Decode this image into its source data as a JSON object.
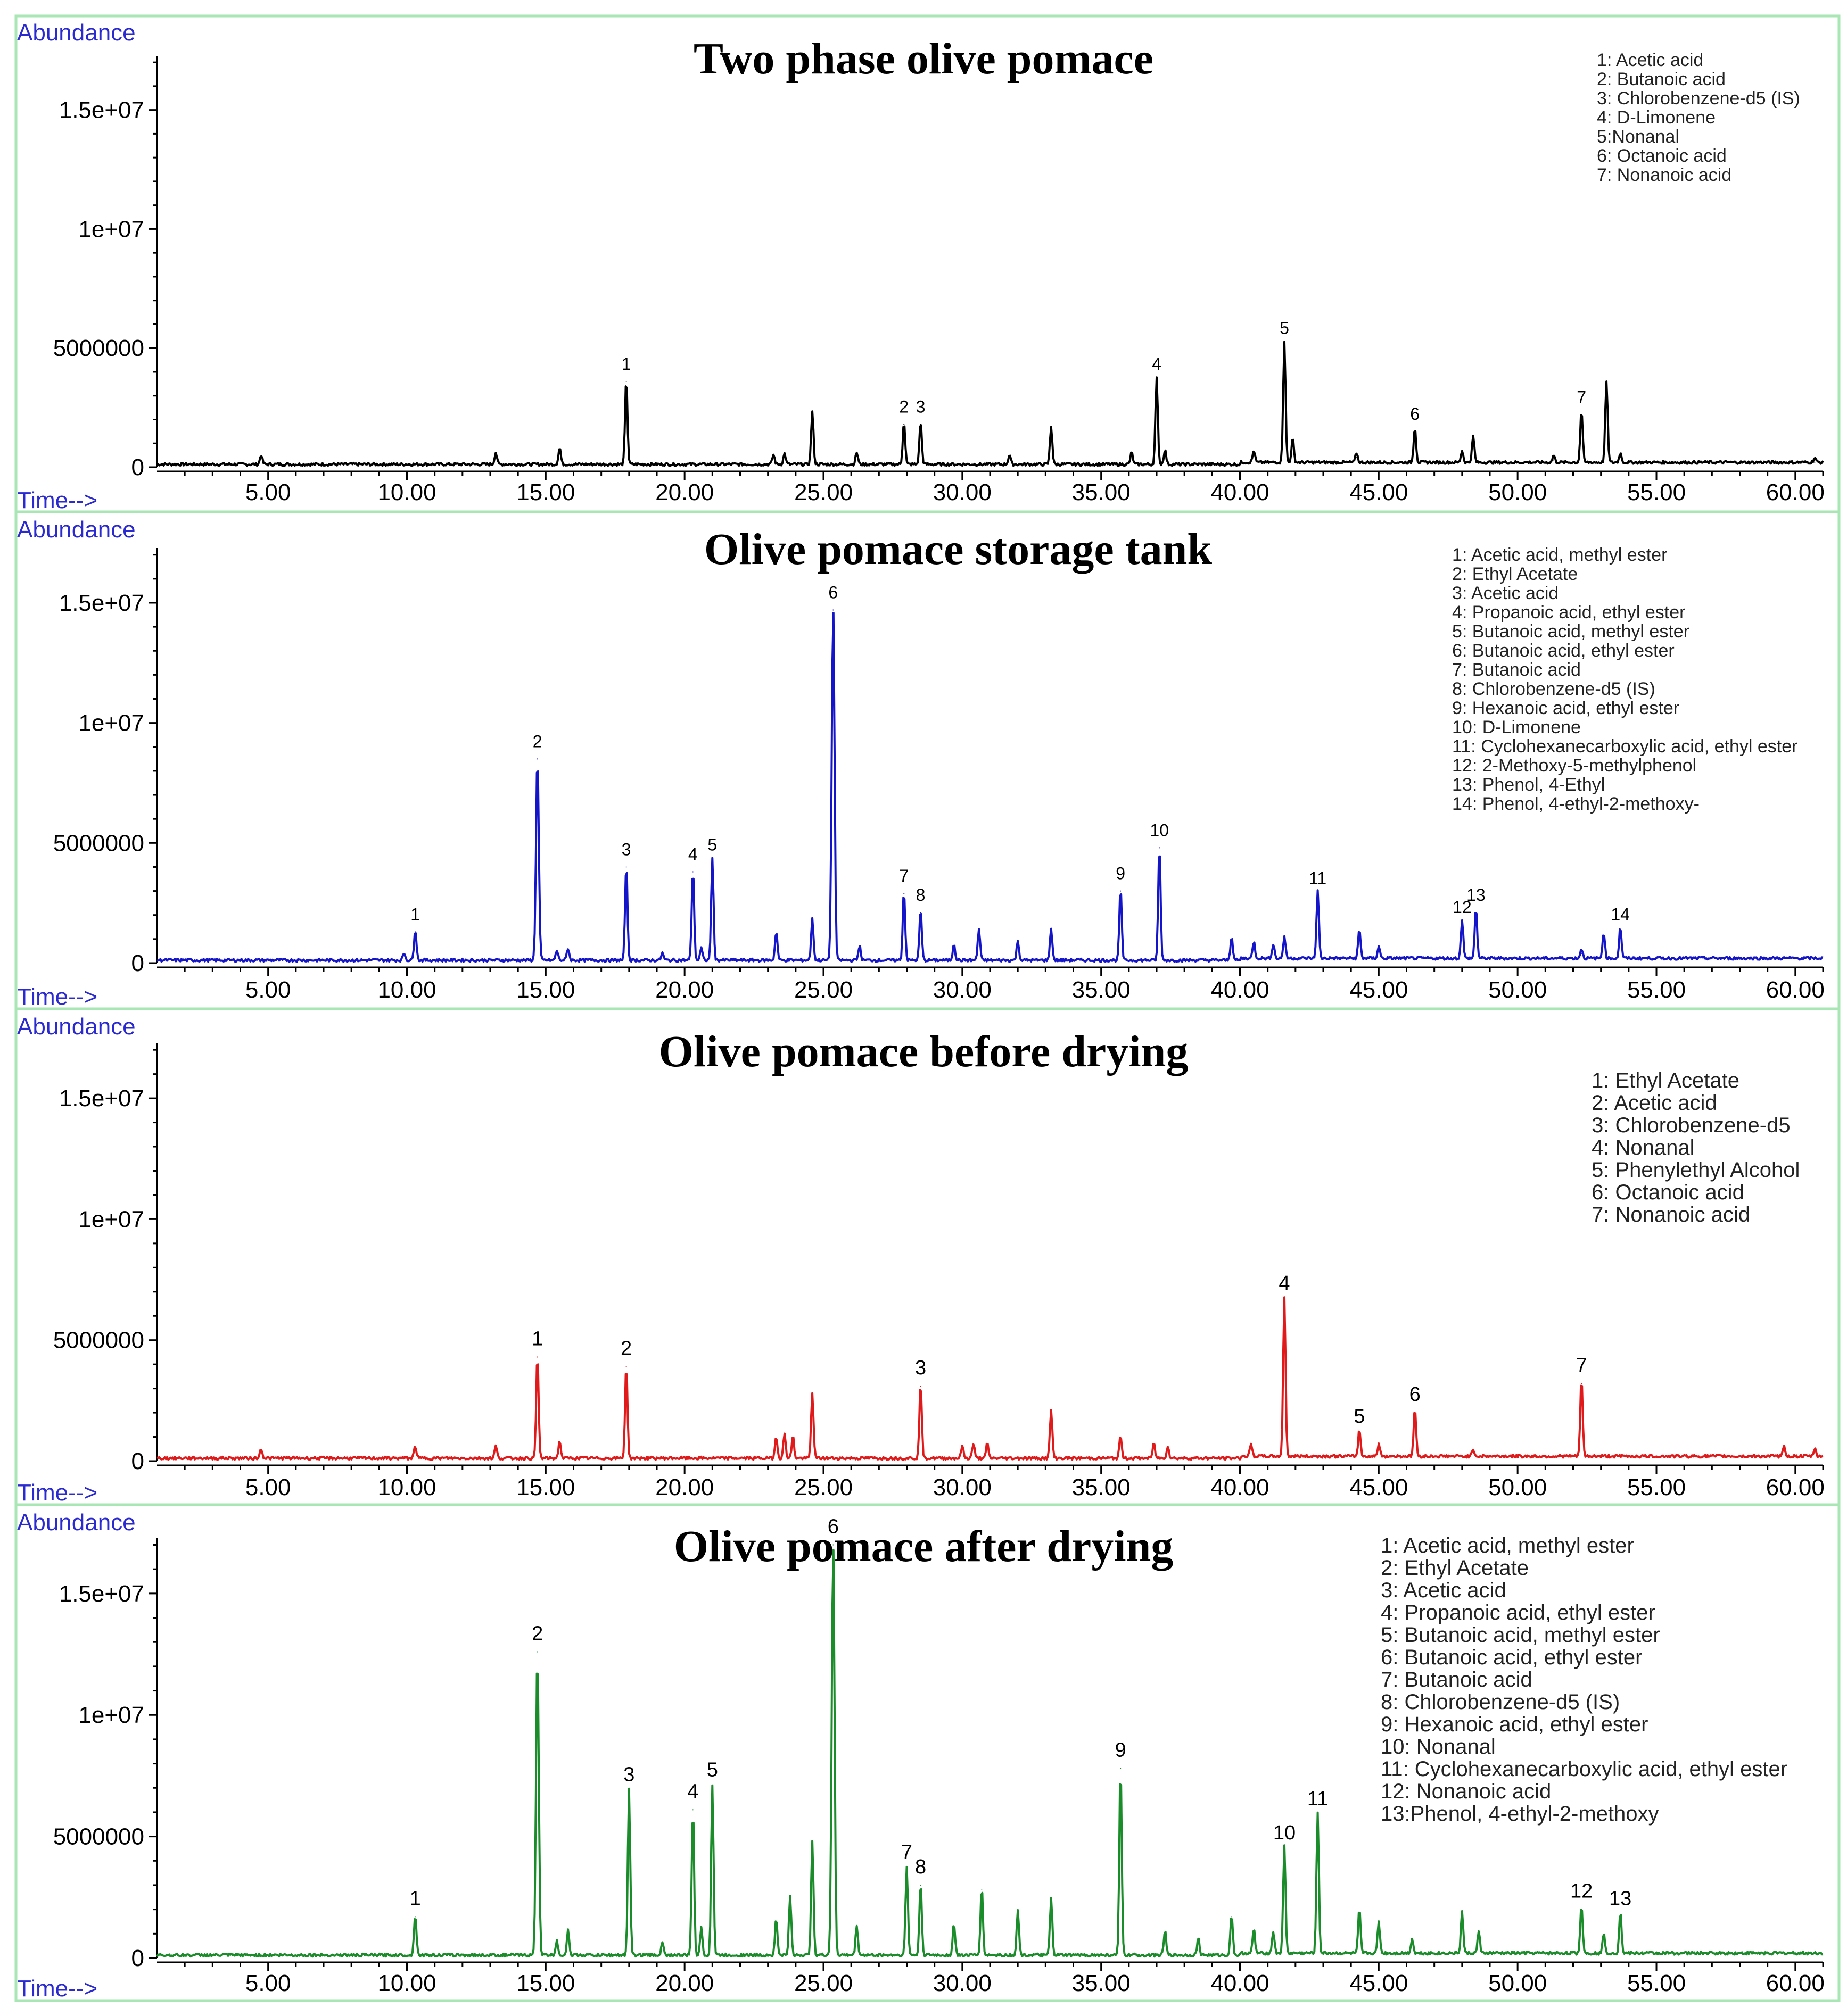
{
  "chart_data": [
    {
      "type": "line",
      "title": "Two phase olive pomace",
      "ylabel": "Abundance",
      "xlabel": "Time-->",
      "color": "#000000",
      "xlim": [
        1.0,
        61.0
      ],
      "ylim": [
        0,
        18500000
      ],
      "xticks": [
        "5.00",
        "10.00",
        "15.00",
        "20.00",
        "25.00",
        "30.00",
        "35.00",
        "40.00",
        "45.00",
        "50.00",
        "55.00",
        "60.00"
      ],
      "yticks": [
        "0",
        "5000000",
        "1e+07",
        "1.5e+07"
      ],
      "legend": [
        "1: Acetic acid",
        "2: Butanoic acid",
        "3: Chlorobenzene-d5 (IS)",
        "4: D-Limonene",
        "5:Nonanal",
        "6: Octanoic acid",
        "7: Nonanoic acid"
      ],
      "peaks": [
        {
          "x": 4.75,
          "y": 400000,
          "label": ""
        },
        {
          "x": 13.2,
          "y": 500000,
          "label": ""
        },
        {
          "x": 15.5,
          "y": 700000,
          "label": ""
        },
        {
          "x": 17.9,
          "y": 3600000,
          "label": "1"
        },
        {
          "x": 23.2,
          "y": 400000,
          "label": ""
        },
        {
          "x": 23.6,
          "y": 450000,
          "label": ""
        },
        {
          "x": 24.6,
          "y": 2200000,
          "label": ""
        },
        {
          "x": 26.2,
          "y": 500000,
          "label": ""
        },
        {
          "x": 27.9,
          "y": 1800000,
          "label": "2"
        },
        {
          "x": 28.5,
          "y": 1800000,
          "label": "3"
        },
        {
          "x": 31.7,
          "y": 400000,
          "label": ""
        },
        {
          "x": 33.2,
          "y": 1600000,
          "label": ""
        },
        {
          "x": 36.1,
          "y": 500000,
          "label": ""
        },
        {
          "x": 37.0,
          "y": 3600000,
          "label": "4"
        },
        {
          "x": 37.3,
          "y": 600000,
          "label": ""
        },
        {
          "x": 40.5,
          "y": 500000,
          "label": ""
        },
        {
          "x": 41.6,
          "y": 5100000,
          "label": "5"
        },
        {
          "x": 41.9,
          "y": 1000000,
          "label": ""
        },
        {
          "x": 44.2,
          "y": 400000,
          "label": ""
        },
        {
          "x": 46.3,
          "y": 1500000,
          "label": "6"
        },
        {
          "x": 48.0,
          "y": 500000,
          "label": ""
        },
        {
          "x": 48.4,
          "y": 1100000,
          "label": ""
        },
        {
          "x": 51.3,
          "y": 300000,
          "label": ""
        },
        {
          "x": 52.3,
          "y": 2200000,
          "label": "7"
        },
        {
          "x": 53.2,
          "y": 3400000,
          "label": ""
        },
        {
          "x": 53.7,
          "y": 400000,
          "label": ""
        },
        {
          "x": 60.7,
          "y": 200000,
          "label": ""
        }
      ]
    },
    {
      "type": "line",
      "title": "Olive pomace storage tank",
      "ylabel": "Abundance",
      "xlabel": "Time-->",
      "color": "#1414c8",
      "xlim": [
        1.0,
        61.0
      ],
      "ylim": [
        0,
        18500000
      ],
      "xticks": [
        "5.00",
        "10.00",
        "15.00",
        "20.00",
        "25.00",
        "30.00",
        "35.00",
        "40.00",
        "45.00",
        "50.00",
        "55.00",
        "60.00"
      ],
      "yticks": [
        "0",
        "5000000",
        "1e+07",
        "1.5e+07"
      ],
      "legend": [
        "1: Acetic acid, methyl ester",
        "2: Ethyl Acetate",
        "3: Acetic acid",
        "4: Propanoic acid, ethyl ester",
        "5: Butanoic acid, methyl ester",
        "6: Butanoic acid, ethyl ester",
        "7: Butanoic acid",
        "8: Chlorobenzene-d5 (IS)",
        "9: Hexanoic acid, ethyl ester",
        "10: D-Limonene",
        "11: Cyclohexanecarboxylic acid, ethyl ester",
        "12: 2-Methoxy-5-methylphenol",
        "13: Phenol, 4-Ethyl",
        "14: Phenol, 4-ethyl-2-methoxy-"
      ],
      "peaks": [
        {
          "x": 9.9,
          "y": 300000,
          "label": ""
        },
        {
          "x": 10.3,
          "y": 1300000,
          "label": "1"
        },
        {
          "x": 14.7,
          "y": 8500000,
          "label": "2"
        },
        {
          "x": 15.4,
          "y": 400000,
          "label": ""
        },
        {
          "x": 15.8,
          "y": 500000,
          "label": ""
        },
        {
          "x": 17.9,
          "y": 4000000,
          "label": "3"
        },
        {
          "x": 19.2,
          "y": 300000,
          "label": ""
        },
        {
          "x": 20.3,
          "y": 3800000,
          "label": "4"
        },
        {
          "x": 20.6,
          "y": 500000,
          "label": ""
        },
        {
          "x": 21.0,
          "y": 4200000,
          "label": "5"
        },
        {
          "x": 23.3,
          "y": 1200000,
          "label": ""
        },
        {
          "x": 24.6,
          "y": 1700000,
          "label": ""
        },
        {
          "x": 25.35,
          "y": 14700000,
          "label": "6"
        },
        {
          "x": 26.3,
          "y": 600000,
          "label": ""
        },
        {
          "x": 27.9,
          "y": 2900000,
          "label": "7"
        },
        {
          "x": 28.5,
          "y": 2100000,
          "label": "8"
        },
        {
          "x": 29.7,
          "y": 700000,
          "label": ""
        },
        {
          "x": 30.6,
          "y": 1300000,
          "label": ""
        },
        {
          "x": 32.0,
          "y": 800000,
          "label": ""
        },
        {
          "x": 33.2,
          "y": 1300000,
          "label": ""
        },
        {
          "x": 35.7,
          "y": 3000000,
          "label": "9"
        },
        {
          "x": 37.1,
          "y": 4800000,
          "label": "10"
        },
        {
          "x": 39.7,
          "y": 1000000,
          "label": ""
        },
        {
          "x": 40.5,
          "y": 700000,
          "label": ""
        },
        {
          "x": 41.2,
          "y": 600000,
          "label": ""
        },
        {
          "x": 41.6,
          "y": 900000,
          "label": ""
        },
        {
          "x": 42.8,
          "y": 2800000,
          "label": "11"
        },
        {
          "x": 44.3,
          "y": 1200000,
          "label": ""
        },
        {
          "x": 45.0,
          "y": 500000,
          "label": ""
        },
        {
          "x": 48.0,
          "y": 1600000,
          "label": "12"
        },
        {
          "x": 48.5,
          "y": 2100000,
          "label": "13"
        },
        {
          "x": 52.3,
          "y": 400000,
          "label": ""
        },
        {
          "x": 53.1,
          "y": 1100000,
          "label": ""
        },
        {
          "x": 53.7,
          "y": 1300000,
          "label": "14"
        }
      ]
    },
    {
      "type": "line",
      "title": "Olive pomace before drying",
      "ylabel": "Abundance",
      "xlabel": "Time-->",
      "color": "#e01a1a",
      "xlim": [
        1.0,
        61.0
      ],
      "ylim": [
        0,
        18500000
      ],
      "xticks": [
        "5.00",
        "10.00",
        "15.00",
        "20.00",
        "25.00",
        "30.00",
        "35.00",
        "40.00",
        "45.00",
        "50.00",
        "55.00",
        "60.00"
      ],
      "yticks": [
        "0",
        "5000000",
        "1e+07",
        "1.5e+07"
      ],
      "legend": [
        "1: Ethyl Acetate",
        "2: Acetic acid",
        "3: Chlorobenzene-d5",
        "4: Nonanal",
        "5: Phenylethyl Alcohol",
        "6: Octanoic acid",
        "7: Nonanoic acid"
      ],
      "peaks": [
        {
          "x": 4.75,
          "y": 400000,
          "label": ""
        },
        {
          "x": 10.3,
          "y": 500000,
          "label": ""
        },
        {
          "x": 13.2,
          "y": 500000,
          "label": ""
        },
        {
          "x": 14.7,
          "y": 4300000,
          "label": "1"
        },
        {
          "x": 15.5,
          "y": 700000,
          "label": ""
        },
        {
          "x": 17.9,
          "y": 3900000,
          "label": "2"
        },
        {
          "x": 23.3,
          "y": 900000,
          "label": ""
        },
        {
          "x": 23.6,
          "y": 1000000,
          "label": ""
        },
        {
          "x": 23.9,
          "y": 900000,
          "label": ""
        },
        {
          "x": 24.6,
          "y": 2700000,
          "label": ""
        },
        {
          "x": 28.5,
          "y": 3100000,
          "label": "3"
        },
        {
          "x": 30.0,
          "y": 500000,
          "label": ""
        },
        {
          "x": 30.4,
          "y": 600000,
          "label": ""
        },
        {
          "x": 30.9,
          "y": 600000,
          "label": ""
        },
        {
          "x": 33.2,
          "y": 2000000,
          "label": ""
        },
        {
          "x": 35.7,
          "y": 900000,
          "label": ""
        },
        {
          "x": 36.9,
          "y": 600000,
          "label": ""
        },
        {
          "x": 37.4,
          "y": 500000,
          "label": ""
        },
        {
          "x": 40.4,
          "y": 500000,
          "label": ""
        },
        {
          "x": 41.6,
          "y": 6600000,
          "label": "4"
        },
        {
          "x": 44.3,
          "y": 1100000,
          "label": "5"
        },
        {
          "x": 45.0,
          "y": 500000,
          "label": ""
        },
        {
          "x": 46.3,
          "y": 2000000,
          "label": "6"
        },
        {
          "x": 48.4,
          "y": 300000,
          "label": ""
        },
        {
          "x": 52.3,
          "y": 3200000,
          "label": "7"
        },
        {
          "x": 59.6,
          "y": 400000,
          "label": ""
        },
        {
          "x": 60.7,
          "y": 300000,
          "label": ""
        }
      ]
    },
    {
      "type": "line",
      "title": "Olive pomace after drying",
      "ylabel": "Abundance",
      "xlabel": "Time-->",
      "color": "#1a8c2a",
      "xlim": [
        1.0,
        61.0
      ],
      "ylim": [
        0,
        18500000
      ],
      "xticks": [
        "5.00",
        "10.00",
        "15.00",
        "20.00",
        "25.00",
        "30.00",
        "35.00",
        "40.00",
        "45.00",
        "50.00",
        "55.00",
        "60.00"
      ],
      "yticks": [
        "0",
        "5000000",
        "1e+07",
        "1.5e+07"
      ],
      "legend": [
        "1: Acetic acid, methyl ester",
        "2: Ethyl Acetate",
        "3: Acetic acid",
        "4: Propanoic acid, ethyl ester",
        "5: Butanoic acid, methyl ester",
        "6: Butanoic acid, ethyl ester",
        "7: Butanoic acid",
        "8: Chlorobenzene-d5 (IS)",
        "9: Hexanoic acid, ethyl ester",
        "10: Nonanal",
        "11: Cyclohexanecarboxylic acid, ethyl ester",
        "12: Nonanoic acid",
        "13:Phenol, 4-ethyl-2-methoxy"
      ],
      "peaks": [
        {
          "x": 10.3,
          "y": 1700000,
          "label": "1"
        },
        {
          "x": 14.7,
          "y": 12600000,
          "label": "2"
        },
        {
          "x": 15.4,
          "y": 600000,
          "label": ""
        },
        {
          "x": 15.8,
          "y": 1000000,
          "label": ""
        },
        {
          "x": 18.0,
          "y": 6800000,
          "label": "3"
        },
        {
          "x": 19.2,
          "y": 500000,
          "label": ""
        },
        {
          "x": 20.3,
          "y": 6100000,
          "label": "4"
        },
        {
          "x": 20.6,
          "y": 1100000,
          "label": ""
        },
        {
          "x": 21.0,
          "y": 7000000,
          "label": "5"
        },
        {
          "x": 23.3,
          "y": 1500000,
          "label": ""
        },
        {
          "x": 23.8,
          "y": 2400000,
          "label": ""
        },
        {
          "x": 24.6,
          "y": 4700000,
          "label": ""
        },
        {
          "x": 25.35,
          "y": 17000000,
          "label": "6"
        },
        {
          "x": 26.2,
          "y": 1200000,
          "label": ""
        },
        {
          "x": 28.0,
          "y": 3600000,
          "label": "7"
        },
        {
          "x": 28.5,
          "y": 3000000,
          "label": "8"
        },
        {
          "x": 29.7,
          "y": 1300000,
          "label": ""
        },
        {
          "x": 30.7,
          "y": 2800000,
          "label": ""
        },
        {
          "x": 32.0,
          "y": 1800000,
          "label": ""
        },
        {
          "x": 33.2,
          "y": 2300000,
          "label": ""
        },
        {
          "x": 35.7,
          "y": 7800000,
          "label": "9"
        },
        {
          "x": 37.3,
          "y": 1000000,
          "label": ""
        },
        {
          "x": 38.5,
          "y": 700000,
          "label": ""
        },
        {
          "x": 39.7,
          "y": 1700000,
          "label": ""
        },
        {
          "x": 40.5,
          "y": 1000000,
          "label": ""
        },
        {
          "x": 41.2,
          "y": 900000,
          "label": ""
        },
        {
          "x": 41.6,
          "y": 4400000,
          "label": "10"
        },
        {
          "x": 42.8,
          "y": 5800000,
          "label": "11"
        },
        {
          "x": 44.3,
          "y": 1800000,
          "label": ""
        },
        {
          "x": 45.0,
          "y": 1300000,
          "label": ""
        },
        {
          "x": 46.2,
          "y": 600000,
          "label": ""
        },
        {
          "x": 48.0,
          "y": 1700000,
          "label": ""
        },
        {
          "x": 48.6,
          "y": 900000,
          "label": ""
        },
        {
          "x": 52.3,
          "y": 2000000,
          "label": "12"
        },
        {
          "x": 53.1,
          "y": 800000,
          "label": ""
        },
        {
          "x": 53.7,
          "y": 1700000,
          "label": "13"
        }
      ]
    }
  ]
}
